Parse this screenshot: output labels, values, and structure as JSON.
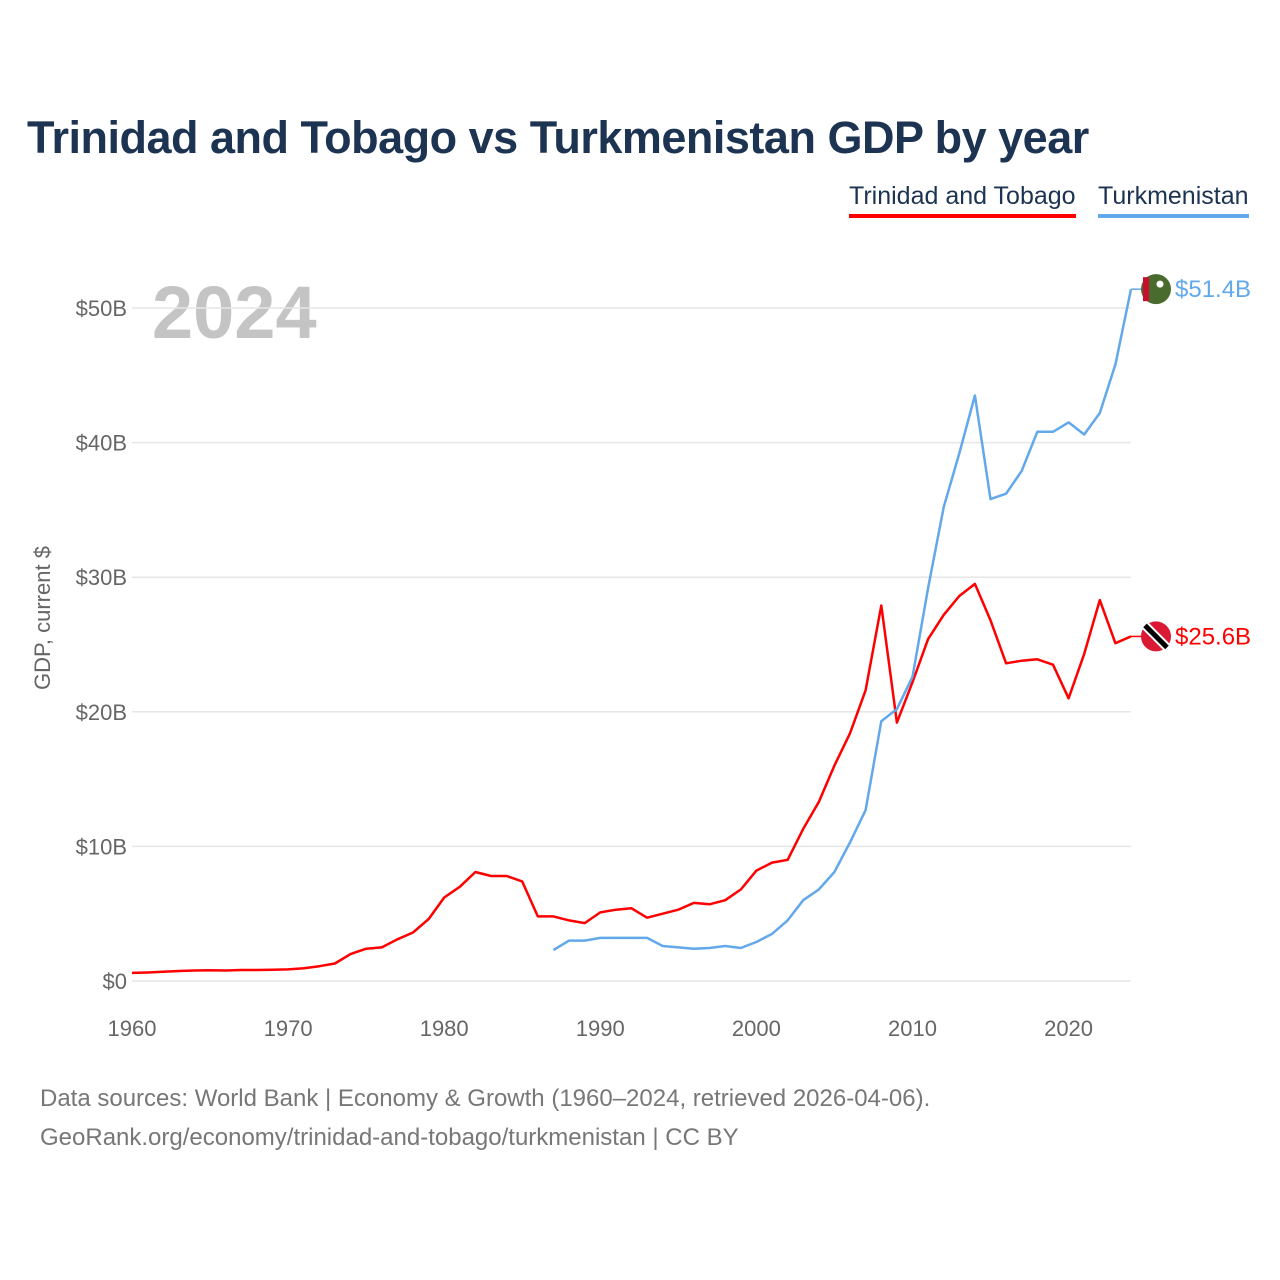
{
  "title": "Trinidad and Tobago vs Turkmenistan GDP by year",
  "year_label": "2024",
  "footer": {
    "line1": "Data sources: World Bank | Economy & Growth (1960–2024, retrieved 2026-04-06).",
    "line2": "GeoRank.org/economy/trinidad-and-tobago/turkmenistan | CC BY"
  },
  "chart_data": {
    "type": "line",
    "title": "Trinidad and Tobago vs Turkmenistan GDP by year",
    "xlabel": "",
    "ylabel": "GDP, current $",
    "xlim": [
      1960,
      2024
    ],
    "ylim": [
      0,
      52
    ],
    "x_ticks": [
      "1960",
      "1970",
      "1980",
      "1990",
      "2000",
      "2010",
      "2020"
    ],
    "y_ticks": [
      "$0",
      "$10B",
      "$20B",
      "$30B",
      "$40B",
      "$50B"
    ],
    "grid": true,
    "legend_position": "top-right",
    "series": [
      {
        "name": "Trinidad and Tobago",
        "color": "#ff0000",
        "end_label": "$25.6B",
        "start_year": 1960,
        "values": [
          0.6,
          0.63,
          0.68,
          0.74,
          0.78,
          0.8,
          0.78,
          0.82,
          0.82,
          0.84,
          0.86,
          0.94,
          1.1,
          1.3,
          2.0,
          2.4,
          2.5,
          3.1,
          3.6,
          4.6,
          6.2,
          7.0,
          8.1,
          7.8,
          7.8,
          7.4,
          4.8,
          4.8,
          4.5,
          4.3,
          5.1,
          5.3,
          5.4,
          4.7,
          5.0,
          5.3,
          5.8,
          5.7,
          6.0,
          6.8,
          8.2,
          8.8,
          9.0,
          11.3,
          13.3,
          16.0,
          18.4,
          21.6,
          27.9,
          19.2,
          22.2,
          25.4,
          27.2,
          28.6,
          29.5,
          26.8,
          23.6,
          23.8,
          23.9,
          23.5,
          21.0,
          24.3,
          28.3,
          25.1,
          25.6
        ]
      },
      {
        "name": "Turkmenistan",
        "color": "#62a8ea",
        "end_label": "$51.4B",
        "start_year": 1987,
        "values": [
          2.3,
          3.0,
          3.0,
          3.2,
          3.2,
          3.2,
          3.2,
          2.6,
          2.5,
          2.4,
          2.45,
          2.6,
          2.45,
          2.9,
          3.5,
          4.5,
          6.0,
          6.8,
          8.1,
          10.3,
          12.7,
          19.3,
          20.2,
          22.6,
          29.2,
          35.2,
          39.2,
          43.5,
          35.8,
          36.2,
          37.9,
          40.8,
          40.8,
          41.5,
          40.6,
          42.2,
          45.8,
          51.4
        ]
      }
    ]
  }
}
